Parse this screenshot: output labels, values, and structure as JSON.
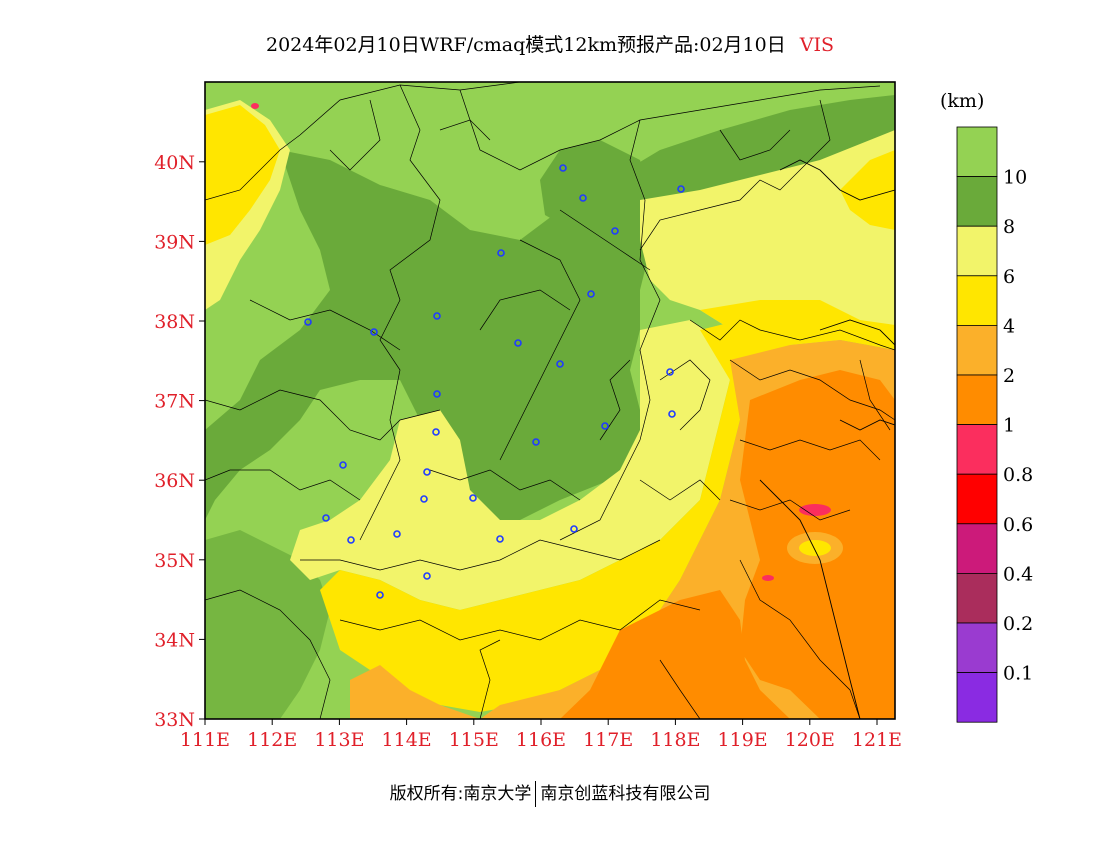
{
  "title": {
    "text": "2024年02月10日WRF/cmaq模式12km预报产品:02月10日",
    "variable": "VIS"
  },
  "legend": {
    "unit": "(km)",
    "bins": [
      {
        "color": "#94d253"
      },
      {
        "color": "#6aaa3a",
        "label": "10"
      },
      {
        "color": "#f2f46a",
        "label": "8"
      },
      {
        "color": "#ffe600",
        "label": "6"
      },
      {
        "color": "#fbb02a",
        "label": "4"
      },
      {
        "color": "#ff8c00",
        "label": "2"
      },
      {
        "color": "#fb2e5e",
        "label": "1"
      },
      {
        "color": "#ff0000",
        "label": "0.8"
      },
      {
        "color": "#cc1a7a",
        "label": "0.6"
      },
      {
        "color": "#aa2d5c",
        "label": "0.4"
      },
      {
        "color": "#9a3bd0",
        "label": "0.2"
      },
      {
        "color": "#8a2be2",
        "label": "0.1"
      }
    ]
  },
  "axes": {
    "lon_labels": [
      "111E",
      "112E",
      "113E",
      "114E",
      "115E",
      "116E",
      "117E",
      "118E",
      "119E",
      "120E",
      "121E"
    ],
    "lat_labels": [
      "33N",
      "34N",
      "35N",
      "36N",
      "37N",
      "38N",
      "39N",
      "40N"
    ]
  },
  "footer": {
    "copyright": "版权所有:南京大学",
    "company": "南京创蓝科技有限公司"
  },
  "colors": {
    "axis_label": "#e0202a",
    "station_marker": "#1f3cff"
  }
}
